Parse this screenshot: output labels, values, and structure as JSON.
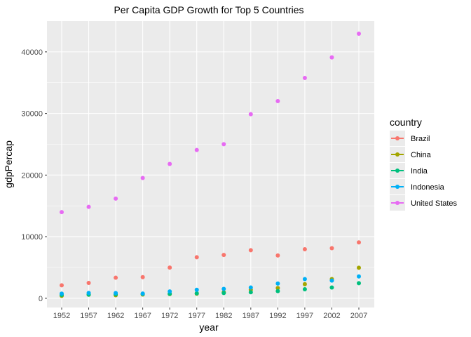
{
  "chart_data": {
    "type": "scatter",
    "title": "Per Capita GDP Growth for Top 5 Countries",
    "xlabel": "year",
    "ylabel": "gdpPercap",
    "x": [
      1952,
      1957,
      1962,
      1967,
      1972,
      1977,
      1982,
      1987,
      1992,
      1997,
      2002,
      2007
    ],
    "x_ticks": [
      "1952",
      "1957",
      "1962",
      "1967",
      "1972",
      "1977",
      "1982",
      "1987",
      "1992",
      "1997",
      "2002",
      "2007"
    ],
    "y_ticks": [
      0,
      10000,
      20000,
      30000,
      40000
    ],
    "y_tick_labels": [
      "0",
      "10000",
      "20000",
      "30000",
      "40000"
    ],
    "ylim": [
      -1500,
      45000
    ],
    "grid": true,
    "legend": {
      "title": "country",
      "position": "right"
    },
    "series": [
      {
        "name": "Brazil",
        "color": "#F8766D",
        "values": [
          2109,
          2487,
          3337,
          3430,
          4986,
          6660,
          7031,
          7807,
          6950,
          7958,
          8131,
          9066
        ]
      },
      {
        "name": "China",
        "color": "#A3A500",
        "values": [
          400,
          576,
          488,
          613,
          677,
          741,
          962,
          1379,
          1656,
          2289,
          3119,
          4959
        ]
      },
      {
        "name": "India",
        "color": "#00BF7D",
        "values": [
          547,
          590,
          658,
          701,
          724,
          813,
          856,
          977,
          1164,
          1459,
          1747,
          2452
        ]
      },
      {
        "name": "Indonesia",
        "color": "#00B0F6",
        "values": [
          750,
          859,
          849,
          763,
          1111,
          1383,
          1517,
          1748,
          2383,
          3119,
          2874,
          3541
        ]
      },
      {
        "name": "United States",
        "color": "#E76BF3",
        "values": [
          13990,
          14847,
          16173,
          19530,
          21806,
          24073,
          25010,
          29884,
          32004,
          35767,
          39097,
          42952
        ]
      }
    ]
  }
}
